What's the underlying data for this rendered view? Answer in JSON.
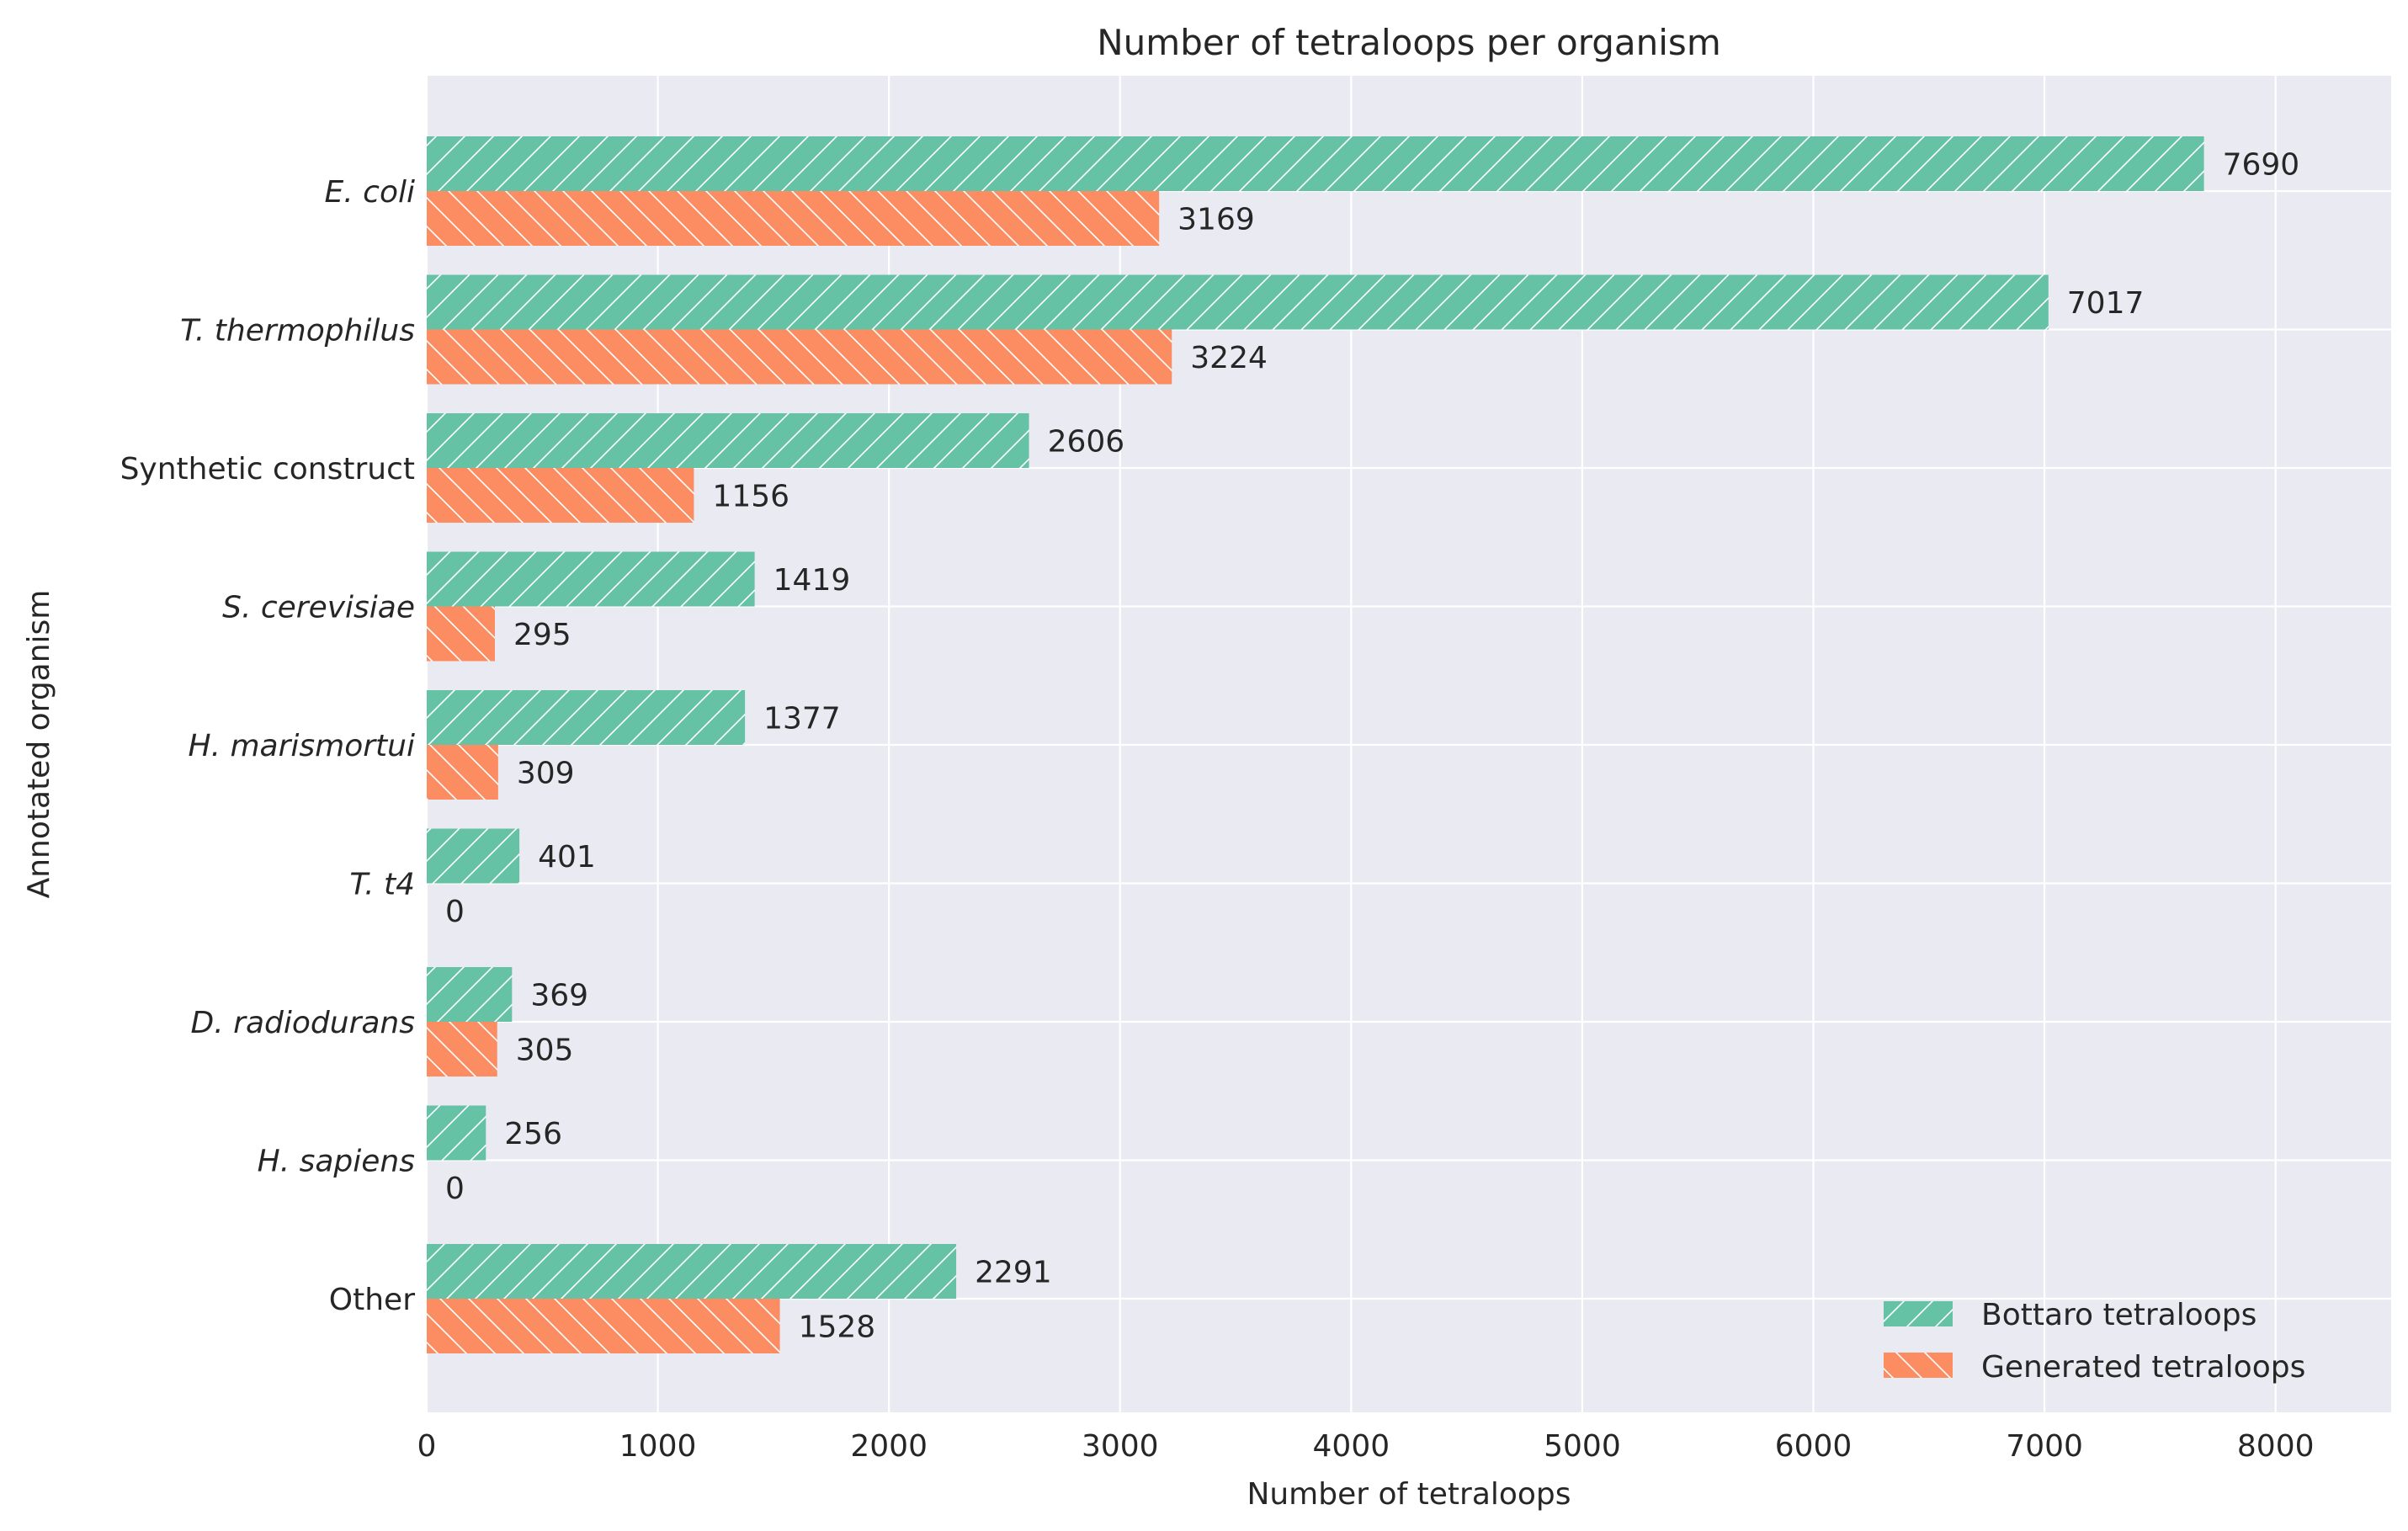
{
  "chart_data": {
    "type": "bar",
    "orientation": "horizontal",
    "title": "Number of tetraloops per organism",
    "xlabel": "Number of tetraloops",
    "ylabel": "Annotated organism",
    "xlim": [
      0,
      8500
    ],
    "xticks": [
      0,
      1000,
      2000,
      3000,
      4000,
      5000,
      6000,
      7000,
      8000
    ],
    "grid": true,
    "legend_position": "bottom-right",
    "categories": [
      "E. coli",
      "T. thermophilus",
      "Synthetic construct",
      "S. cerevisiae",
      "H. marismortui",
      "T. t4",
      "D. radiodurans",
      "H. sapiens",
      "Other"
    ],
    "italic_categories": [
      true,
      true,
      false,
      true,
      true,
      true,
      true,
      true,
      false
    ],
    "series": [
      {
        "name": "Bottaro tetraloops",
        "color": "#66c2a5",
        "hatch": "/",
        "values": [
          7690,
          7017,
          2606,
          1419,
          1377,
          401,
          369,
          256,
          2291
        ]
      },
      {
        "name": "Generated tetraloops",
        "color": "#fc8d62",
        "hatch": "\\",
        "values": [
          3169,
          3224,
          1156,
          295,
          309,
          0,
          305,
          0,
          1528
        ]
      }
    ],
    "colors": {
      "background": "#eaeaf2",
      "grid": "#ffffff",
      "text": "#262626"
    }
  }
}
